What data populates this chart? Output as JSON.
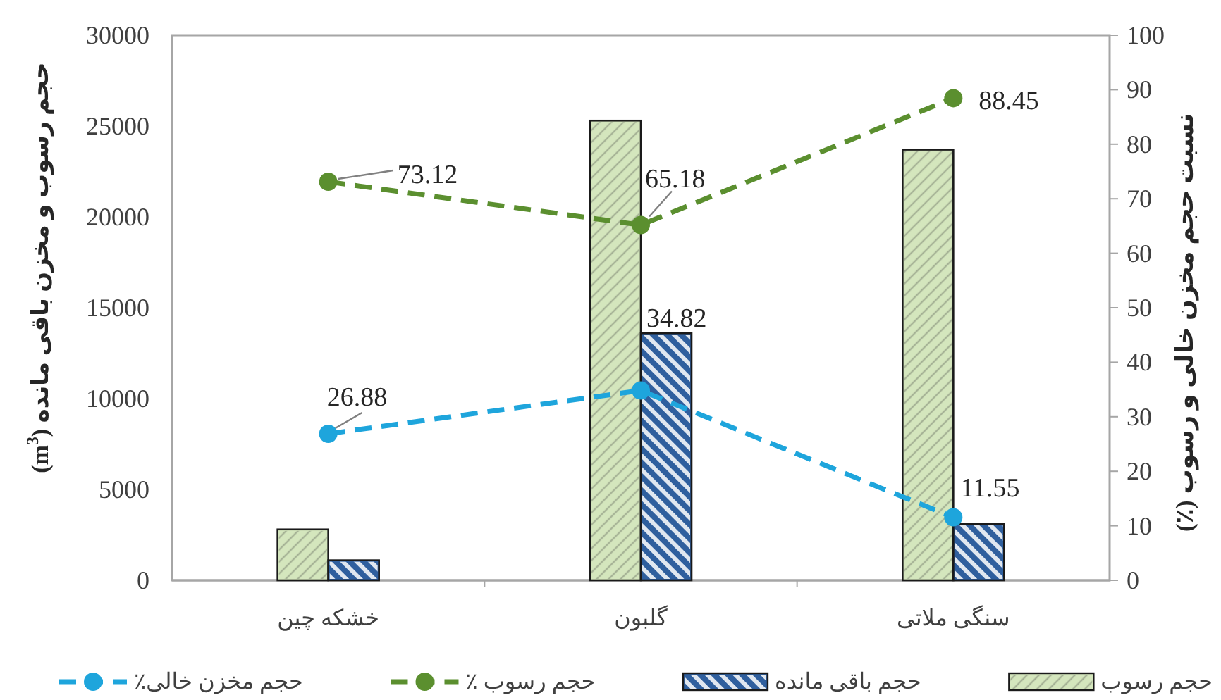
{
  "chart_data": {
    "type": "bar",
    "categories": [
      "خشکه چین",
      "گلبون",
      "سنگی ملاتی"
    ],
    "series": [
      {
        "name": "حجم رسوب",
        "color": "#d4e6bd",
        "values": [
          2800,
          25300,
          23700
        ]
      },
      {
        "name": "حجم باقی مانده",
        "color": "#2f5f9e",
        "values": [
          1100,
          13600,
          3100
        ]
      },
      {
        "name": "حجم رسوب ٪",
        "type": "line",
        "axis": "y2",
        "color": "#5b8f2f",
        "values": [
          73.12,
          65.18,
          88.45
        ],
        "value_labels": [
          "73.12",
          "65.18",
          "88.45"
        ]
      },
      {
        "name": "حجم مخزن خالی٪",
        "type": "line",
        "axis": "y2",
        "color": "#1ea5dc",
        "values": [
          26.88,
          34.82,
          11.55
        ],
        "value_labels": [
          "26.88",
          "34.82",
          "11.55"
        ]
      }
    ],
    "ylabel": "حجم رسوب و مخزن باقی مانده (m$^{3}$)",
    "y2label": "نسبت حجم مخزن خالی و رسوب (٪)",
    "ylim": [
      0,
      30000
    ],
    "yticks": [
      0,
      5000,
      10000,
      15000,
      20000,
      25000,
      30000
    ],
    "y2lim": [
      0,
      100
    ],
    "y2ticks": [
      0,
      10,
      20,
      30,
      40,
      50,
      60,
      70,
      80,
      90,
      100
    ],
    "marker": "circle",
    "line_style": "dashed",
    "legend": "bottom"
  }
}
